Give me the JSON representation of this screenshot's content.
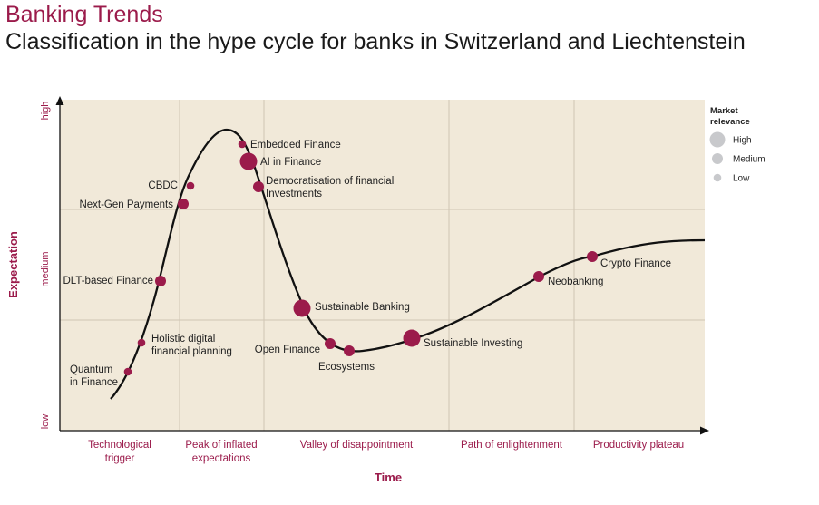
{
  "header": {
    "brand": "Banking Trends",
    "title": "Classification in the hype cycle for banks in Switzerland and Liechtenstein"
  },
  "colors": {
    "accent": "#9b1b4b",
    "plot_background": "#f1e9d9",
    "grid": "#cfc5b4",
    "curve": "#111111",
    "legend_dot": "#c8c9cc"
  },
  "chart_data": {
    "type": "scatter",
    "xlabel": "Time",
    "ylabel": "Expectation",
    "y_ticks": [
      "low",
      "medium",
      "high"
    ],
    "phases": [
      "Technological\ntrigger",
      "Peak of inflated\nexpectations",
      "Valley of disappointment",
      "Path of enlightenment",
      "Productivity plateau"
    ],
    "legend": {
      "title": "Market\nrelevance",
      "items": [
        {
          "label": "High",
          "size": "high"
        },
        {
          "label": "Medium",
          "size": "medium"
        },
        {
          "label": "Low",
          "size": "low"
        }
      ]
    },
    "points": [
      {
        "label": "Quantum\nin Finance",
        "phase": "Technological trigger",
        "relevance": "low"
      },
      {
        "label": "Holistic digital\nfinancial planning",
        "phase": "Technological trigger",
        "relevance": "low"
      },
      {
        "label": "DLT-based Finance",
        "phase": "Technological trigger",
        "relevance": "medium"
      },
      {
        "label": "Next-Gen Payments",
        "phase": "Technological trigger",
        "relevance": "medium"
      },
      {
        "label": "CBDC",
        "phase": "Peak of inflated expectations",
        "relevance": "low"
      },
      {
        "label": "Embedded Finance",
        "phase": "Peak of inflated expectations",
        "relevance": "low"
      },
      {
        "label": "AI in Finance",
        "phase": "Peak of inflated expectations",
        "relevance": "high"
      },
      {
        "label": "Democratisation of financial\nInvestments",
        "phase": "Valley of disappointment",
        "relevance": "medium"
      },
      {
        "label": "Sustainable Banking",
        "phase": "Valley of disappointment",
        "relevance": "high"
      },
      {
        "label": "Open Finance",
        "phase": "Valley of disappointment",
        "relevance": "medium"
      },
      {
        "label": "Ecosystems",
        "phase": "Valley of disappointment",
        "relevance": "medium"
      },
      {
        "label": "Sustainable Investing",
        "phase": "Path of enlightenment",
        "relevance": "high"
      },
      {
        "label": "Neobanking",
        "phase": "Path of enlightenment",
        "relevance": "medium"
      },
      {
        "label": "Crypto Finance",
        "phase": "Productivity plateau",
        "relevance": "medium"
      }
    ]
  }
}
